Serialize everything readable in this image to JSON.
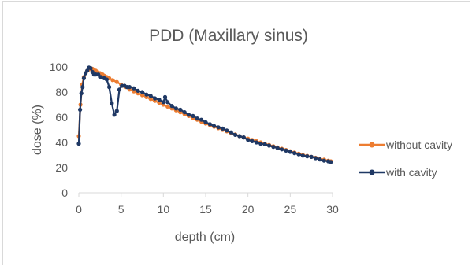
{
  "chart_data": {
    "type": "line",
    "title": "PDD (Maxillary sinus)",
    "xlabel": "depth (cm)",
    "ylabel": "dose (%)",
    "xlim": [
      0,
      30
    ],
    "ylim": [
      0,
      100
    ],
    "xticks": [
      0,
      5,
      10,
      15,
      20,
      25,
      30
    ],
    "yticks": [
      0,
      20,
      40,
      60,
      80,
      100
    ],
    "grid": false,
    "legend_position": "right",
    "series": [
      {
        "name": "without cavity",
        "color": "#ed7d31",
        "marker": "circle",
        "x": [
          0,
          0.2,
          0.4,
          0.6,
          0.8,
          1.0,
          1.2,
          1.4,
          1.6,
          1.8,
          2.0,
          2.2,
          2.5,
          2.8,
          3.0,
          3.3,
          3.6,
          4.0,
          4.5,
          5.0,
          5.5,
          6.0,
          6.5,
          7.0,
          7.5,
          8.0,
          8.5,
          9.0,
          9.5,
          10.0,
          10.5,
          11.0,
          11.5,
          12.0,
          12.5,
          13.0,
          13.5,
          14.0,
          14.5,
          15.0,
          15.5,
          16.0,
          16.5,
          17.0,
          17.5,
          18.0,
          18.5,
          19.0,
          19.5,
          20.0,
          20.5,
          21.0,
          21.5,
          22.0,
          22.5,
          23.0,
          23.5,
          24.0,
          24.5,
          25.0,
          25.5,
          26.0,
          26.5,
          27.0,
          27.5,
          28.0,
          28.5,
          29.0,
          29.5,
          29.8
        ],
        "y": [
          45,
          70,
          86,
          92,
          95,
          97,
          98,
          99,
          98.5,
          97.5,
          97,
          96,
          95,
          94,
          93,
          92,
          91,
          89.5,
          88,
          86,
          84,
          82,
          80.5,
          79,
          77.5,
          76,
          74.5,
          73,
          71.5,
          70,
          68.5,
          67,
          65.5,
          64,
          62.5,
          61,
          59.5,
          58,
          56.5,
          55,
          53.8,
          52.5,
          51.3,
          50,
          48.8,
          47.5,
          46.3,
          45,
          44,
          43,
          42,
          41,
          40,
          39,
          38,
          37,
          36,
          35,
          34,
          33,
          32,
          31,
          30,
          29.3,
          28.5,
          27.8,
          27,
          26.3,
          25.5,
          25
        ]
      },
      {
        "name": "with cavity",
        "color": "#1f3864",
        "marker": "circle",
        "x": [
          0,
          0.15,
          0.3,
          0.45,
          0.6,
          0.8,
          1.0,
          1.2,
          1.4,
          1.6,
          1.8,
          2.0,
          2.3,
          2.6,
          3.0,
          3.3,
          3.6,
          3.9,
          4.2,
          4.5,
          4.8,
          5.1,
          5.4,
          5.7,
          6.0,
          6.5,
          7.0,
          7.5,
          8.0,
          8.5,
          9.0,
          9.5,
          10.0,
          10.2,
          10.5,
          11.0,
          11.5,
          12.0,
          12.5,
          13.0,
          13.5,
          14.0,
          14.5,
          15.0,
          15.5,
          16.0,
          16.5,
          17.0,
          17.5,
          18.0,
          18.5,
          19.0,
          19.5,
          20.0,
          20.5,
          21.0,
          21.5,
          22.0,
          22.5,
          23.0,
          23.5,
          24.0,
          24.5,
          25.0,
          25.5,
          26.0,
          26.5,
          27.0,
          27.5,
          28.0,
          28.5,
          29.0,
          29.5,
          29.8
        ],
        "y": [
          39,
          66,
          79,
          84,
          91,
          95,
          97,
          99.5,
          99,
          96,
          94,
          94,
          94,
          92,
          91,
          90,
          84,
          71,
          62,
          65,
          82,
          85,
          85,
          84,
          84,
          83,
          81,
          80,
          78,
          77,
          75,
          74,
          72,
          76,
          72,
          69,
          67,
          66,
          64,
          62,
          61,
          59,
          58,
          56,
          54.5,
          53,
          52,
          51,
          49.5,
          48,
          46,
          45,
          44,
          42,
          41,
          40,
          39,
          38.5,
          37.5,
          36.5,
          35.5,
          34.5,
          33.5,
          32.5,
          31.5,
          30.5,
          29.5,
          29,
          28.5,
          27.5,
          26.5,
          25.5,
          25,
          24.5
        ]
      }
    ]
  }
}
